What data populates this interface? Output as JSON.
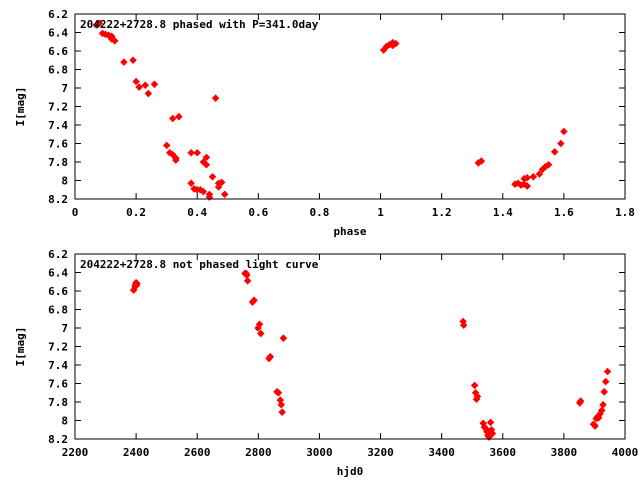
{
  "chart_data": [
    {
      "type": "scatter",
      "title": "204222+2728.8 phased with P=341.0day",
      "xlabel": "phase",
      "ylabel": "I[mag]",
      "xlim": [
        0,
        1.8
      ],
      "ylim": [
        6.2,
        8.2
      ],
      "y_inverted": true,
      "xticks": [
        "0",
        "0.2",
        "0.4",
        "0.6",
        "0.8",
        "1",
        "1.2",
        "1.4",
        "1.6",
        "1.8"
      ],
      "yticks": [
        "6.2",
        "6.4",
        "6.6",
        "6.8",
        "7",
        "7.2",
        "7.4",
        "7.6",
        "7.8",
        "8",
        "8.2"
      ],
      "series": [
        {
          "marker_color": "#ff0000",
          "points": [
            [
              0.07,
              6.32
            ],
            [
              0.08,
              6.3
            ],
            [
              0.09,
              6.41
            ],
            [
              0.1,
              6.42
            ],
            [
              0.11,
              6.43
            ],
            [
              0.12,
              6.44
            ],
            [
              0.12,
              6.47
            ],
            [
              0.13,
              6.49
            ],
            [
              0.16,
              6.72
            ],
            [
              0.19,
              6.7
            ],
            [
              0.2,
              6.93
            ],
            [
              0.21,
              6.99
            ],
            [
              0.23,
              6.97
            ],
            [
              0.24,
              7.06
            ],
            [
              0.26,
              6.96
            ],
            [
              0.3,
              7.62
            ],
            [
              0.31,
              7.7
            ],
            [
              0.32,
              7.33
            ],
            [
              0.32,
              7.72
            ],
            [
              0.33,
              7.76
            ],
            [
              0.33,
              7.78
            ],
            [
              0.34,
              7.31
            ],
            [
              0.38,
              7.7
            ],
            [
              0.38,
              8.03
            ],
            [
              0.39,
              8.09
            ],
            [
              0.4,
              7.7
            ],
            [
              0.4,
              8.1
            ],
            [
              0.41,
              8.1
            ],
            [
              0.42,
              7.8
            ],
            [
              0.42,
              8.12
            ],
            [
              0.43,
              7.75
            ],
            [
              0.43,
              7.83
            ],
            [
              0.44,
              8.15
            ],
            [
              0.44,
              8.18
            ],
            [
              0.45,
              7.96
            ],
            [
              0.46,
              7.11
            ],
            [
              0.47,
              8.03
            ],
            [
              0.47,
              8.07
            ],
            [
              0.48,
              8.02
            ],
            [
              0.49,
              8.15
            ],
            [
              1.01,
              6.59
            ],
            [
              1.02,
              6.55
            ],
            [
              1.03,
              6.53
            ],
            [
              1.04,
              6.51
            ],
            [
              1.04,
              6.54
            ],
            [
              1.05,
              6.52
            ],
            [
              1.32,
              7.81
            ],
            [
              1.33,
              7.79
            ],
            [
              1.44,
              8.04
            ],
            [
              1.45,
              8.03
            ],
            [
              1.46,
              8.05
            ],
            [
              1.47,
              8.04
            ],
            [
              1.47,
              7.98
            ],
            [
              1.48,
              7.97
            ],
            [
              1.48,
              8.06
            ],
            [
              1.5,
              7.96
            ],
            [
              1.52,
              7.93
            ],
            [
              1.53,
              7.88
            ],
            [
              1.54,
              7.85
            ],
            [
              1.55,
              7.83
            ],
            [
              1.57,
              7.69
            ],
            [
              1.59,
              7.6
            ],
            [
              1.6,
              7.47
            ]
          ]
        }
      ]
    },
    {
      "type": "scatter",
      "title": "204222+2728.8 not phased light curve",
      "xlabel": "hjd0",
      "ylabel": "I[mag]",
      "xlim": [
        2200,
        4000
      ],
      "ylim": [
        6.2,
        8.2
      ],
      "y_inverted": true,
      "xticks": [
        "2200",
        "2400",
        "2600",
        "2800",
        "3000",
        "3200",
        "3400",
        "3600",
        "3800",
        "4000"
      ],
      "yticks": [
        "6.2",
        "6.4",
        "6.6",
        "6.8",
        "7",
        "7.2",
        "7.4",
        "7.6",
        "7.8",
        "8",
        "8.2"
      ],
      "series": [
        {
          "marker_color": "#ff0000",
          "points": [
            [
              2392,
              6.59
            ],
            [
              2396,
              6.55
            ],
            [
              2398,
              6.53
            ],
            [
              2400,
              6.51
            ],
            [
              2401,
              6.54
            ],
            [
              2403,
              6.52
            ],
            [
              2756,
              6.41
            ],
            [
              2760,
              6.41
            ],
            [
              2762,
              6.43
            ],
            [
              2765,
              6.49
            ],
            [
              2781,
              6.72
            ],
            [
              2786,
              6.7
            ],
            [
              2799,
              7.0
            ],
            [
              2804,
              6.96
            ],
            [
              2808,
              7.06
            ],
            [
              2835,
              7.33
            ],
            [
              2839,
              7.31
            ],
            [
              2861,
              7.69
            ],
            [
              2866,
              7.7
            ],
            [
              2872,
              7.78
            ],
            [
              2875,
              7.83
            ],
            [
              2878,
              7.91
            ],
            [
              2882,
              7.11
            ],
            [
              3470,
              6.93
            ],
            [
              3472,
              6.97
            ],
            [
              3508,
              7.62
            ],
            [
              3511,
              7.7
            ],
            [
              3514,
              7.77
            ],
            [
              3517,
              7.74
            ],
            [
              3536,
              8.03
            ],
            [
              3540,
              8.07
            ],
            [
              3545,
              8.09
            ],
            [
              3548,
              8.12
            ],
            [
              3551,
              8.16
            ],
            [
              3555,
              8.18
            ],
            [
              3560,
              8.02
            ],
            [
              3563,
              8.1
            ],
            [
              3566,
              8.14
            ],
            [
              3852,
              7.81
            ],
            [
              3855,
              7.79
            ],
            [
              3897,
              8.04
            ],
            [
              3902,
              8.06
            ],
            [
              3906,
              7.98
            ],
            [
              3910,
              7.96
            ],
            [
              3914,
              7.97
            ],
            [
              3918,
              7.93
            ],
            [
              3924,
              7.89
            ],
            [
              3928,
              7.83
            ],
            [
              3932,
              7.69
            ],
            [
              3937,
              7.58
            ],
            [
              3943,
              7.47
            ]
          ]
        }
      ]
    }
  ]
}
